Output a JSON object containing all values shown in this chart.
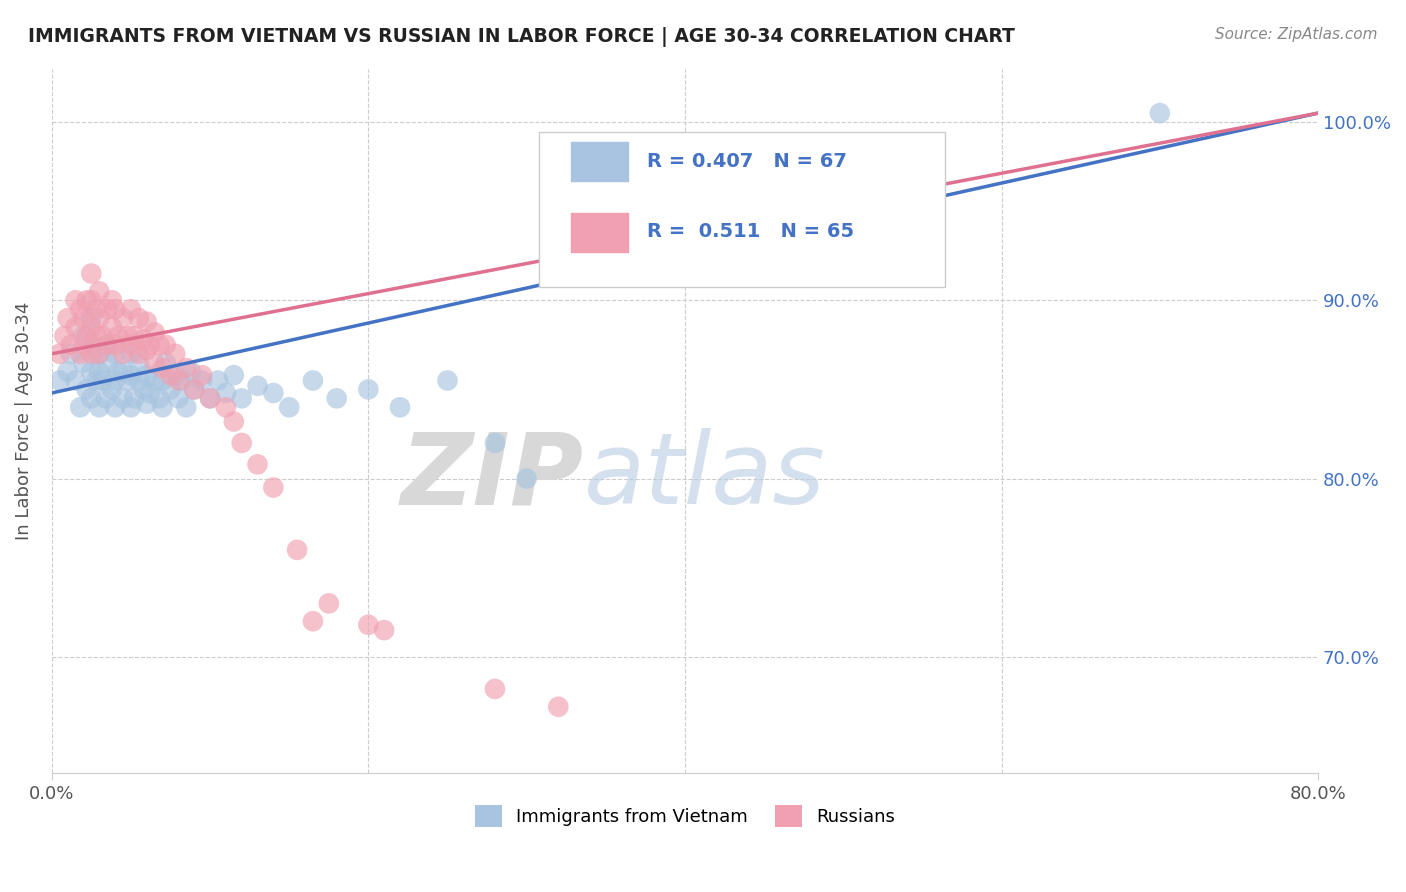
{
  "title": "IMMIGRANTS FROM VIETNAM VS RUSSIAN IN LABOR FORCE | AGE 30-34 CORRELATION CHART",
  "source": "Source: ZipAtlas.com",
  "ylabel": "In Labor Force | Age 30-34",
  "xlim": [
    0.0,
    0.8
  ],
  "ylim": [
    0.635,
    1.03
  ],
  "vietnam_color": "#a8c4e0",
  "russia_color": "#f0a0b0",
  "vietnam_line_color": "#4472c4",
  "russia_line_color": "#e07090",
  "R_vietnam": 0.407,
  "N_vietnam": 67,
  "R_russia": 0.511,
  "N_russia": 65,
  "legend_label_vietnam": "Immigrants from Vietnam",
  "legend_label_russia": "Russians",
  "watermark_zip": "ZIP",
  "watermark_atlas": "atlas",
  "background_color": "#ffffff",
  "vietnam_scatter": [
    [
      0.005,
      0.855
    ],
    [
      0.01,
      0.86
    ],
    [
      0.012,
      0.87
    ],
    [
      0.015,
      0.855
    ],
    [
      0.018,
      0.84
    ],
    [
      0.02,
      0.865
    ],
    [
      0.02,
      0.88
    ],
    [
      0.022,
      0.85
    ],
    [
      0.025,
      0.845
    ],
    [
      0.025,
      0.86
    ],
    [
      0.025,
      0.875
    ],
    [
      0.025,
      0.89
    ],
    [
      0.028,
      0.855
    ],
    [
      0.03,
      0.84
    ],
    [
      0.03,
      0.86
    ],
    [
      0.03,
      0.87
    ],
    [
      0.032,
      0.855
    ],
    [
      0.034,
      0.845
    ],
    [
      0.035,
      0.865
    ],
    [
      0.035,
      0.875
    ],
    [
      0.038,
      0.85
    ],
    [
      0.04,
      0.84
    ],
    [
      0.04,
      0.855
    ],
    [
      0.04,
      0.87
    ],
    [
      0.042,
      0.86
    ],
    [
      0.045,
      0.845
    ],
    [
      0.045,
      0.86
    ],
    [
      0.048,
      0.855
    ],
    [
      0.05,
      0.84
    ],
    [
      0.05,
      0.858
    ],
    [
      0.05,
      0.87
    ],
    [
      0.052,
      0.845
    ],
    [
      0.055,
      0.855
    ],
    [
      0.055,
      0.865
    ],
    [
      0.058,
      0.85
    ],
    [
      0.06,
      0.842
    ],
    [
      0.06,
      0.858
    ],
    [
      0.062,
      0.848
    ],
    [
      0.065,
      0.855
    ],
    [
      0.068,
      0.845
    ],
    [
      0.07,
      0.84
    ],
    [
      0.07,
      0.855
    ],
    [
      0.072,
      0.865
    ],
    [
      0.075,
      0.85
    ],
    [
      0.078,
      0.858
    ],
    [
      0.08,
      0.845
    ],
    [
      0.082,
      0.855
    ],
    [
      0.085,
      0.84
    ],
    [
      0.088,
      0.86
    ],
    [
      0.09,
      0.85
    ],
    [
      0.095,
      0.855
    ],
    [
      0.1,
      0.845
    ],
    [
      0.105,
      0.855
    ],
    [
      0.11,
      0.848
    ],
    [
      0.115,
      0.858
    ],
    [
      0.12,
      0.845
    ],
    [
      0.13,
      0.852
    ],
    [
      0.14,
      0.848
    ],
    [
      0.15,
      0.84
    ],
    [
      0.165,
      0.855
    ],
    [
      0.18,
      0.845
    ],
    [
      0.2,
      0.85
    ],
    [
      0.22,
      0.84
    ],
    [
      0.25,
      0.855
    ],
    [
      0.28,
      0.82
    ],
    [
      0.3,
      0.8
    ],
    [
      0.7,
      1.005
    ]
  ],
  "russia_scatter": [
    [
      0.005,
      0.87
    ],
    [
      0.008,
      0.88
    ],
    [
      0.01,
      0.89
    ],
    [
      0.012,
      0.875
    ],
    [
      0.015,
      0.885
    ],
    [
      0.015,
      0.9
    ],
    [
      0.018,
      0.87
    ],
    [
      0.018,
      0.895
    ],
    [
      0.02,
      0.875
    ],
    [
      0.02,
      0.89
    ],
    [
      0.022,
      0.88
    ],
    [
      0.022,
      0.9
    ],
    [
      0.025,
      0.87
    ],
    [
      0.025,
      0.885
    ],
    [
      0.025,
      0.9
    ],
    [
      0.025,
      0.915
    ],
    [
      0.028,
      0.88
    ],
    [
      0.028,
      0.895
    ],
    [
      0.03,
      0.87
    ],
    [
      0.03,
      0.89
    ],
    [
      0.03,
      0.905
    ],
    [
      0.032,
      0.88
    ],
    [
      0.035,
      0.875
    ],
    [
      0.035,
      0.895
    ],
    [
      0.038,
      0.885
    ],
    [
      0.038,
      0.9
    ],
    [
      0.04,
      0.875
    ],
    [
      0.04,
      0.895
    ],
    [
      0.042,
      0.88
    ],
    [
      0.045,
      0.87
    ],
    [
      0.045,
      0.89
    ],
    [
      0.048,
      0.88
    ],
    [
      0.05,
      0.875
    ],
    [
      0.05,
      0.895
    ],
    [
      0.052,
      0.88
    ],
    [
      0.055,
      0.87
    ],
    [
      0.055,
      0.89
    ],
    [
      0.058,
      0.878
    ],
    [
      0.06,
      0.872
    ],
    [
      0.06,
      0.888
    ],
    [
      0.062,
      0.875
    ],
    [
      0.065,
      0.865
    ],
    [
      0.065,
      0.882
    ],
    [
      0.068,
      0.875
    ],
    [
      0.07,
      0.862
    ],
    [
      0.072,
      0.875
    ],
    [
      0.075,
      0.858
    ],
    [
      0.078,
      0.87
    ],
    [
      0.08,
      0.855
    ],
    [
      0.085,
      0.862
    ],
    [
      0.09,
      0.85
    ],
    [
      0.095,
      0.858
    ],
    [
      0.1,
      0.845
    ],
    [
      0.11,
      0.84
    ],
    [
      0.115,
      0.832
    ],
    [
      0.12,
      0.82
    ],
    [
      0.13,
      0.808
    ],
    [
      0.14,
      0.795
    ],
    [
      0.155,
      0.76
    ],
    [
      0.165,
      0.72
    ],
    [
      0.175,
      0.73
    ],
    [
      0.2,
      0.718
    ],
    [
      0.21,
      0.715
    ],
    [
      0.28,
      0.682
    ],
    [
      0.32,
      0.672
    ]
  ]
}
